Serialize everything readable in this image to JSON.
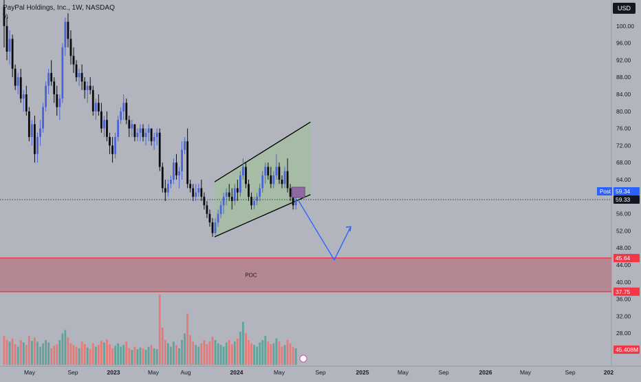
{
  "header": {
    "symbol_title": "PayPal Holdings, Inc., 1W, NASDAQ",
    "indicator_label": "Vi",
    "currency": "USD"
  },
  "chart_data": {
    "type": "candlestick",
    "symbol": "PayPal Holdings, Inc.",
    "interval": "1W",
    "exchange": "NASDAQ",
    "y_ticks": [
      100,
      96,
      92,
      88,
      84,
      80,
      76,
      72,
      68,
      64,
      56,
      52,
      48,
      44,
      40,
      36,
      32,
      28
    ],
    "x_ticks": [
      "May",
      "Sep",
      "2023",
      "May",
      "Aug",
      "2024",
      "May",
      "Sep",
      "2025",
      "May",
      "Sep",
      "2026",
      "May",
      "Sep",
      "202"
    ],
    "price_labels": {
      "post": {
        "label": "Post",
        "value": "59.34"
      },
      "last": "59.33",
      "poc_top": "45.64",
      "poc_bottom": "37.75",
      "volume": "45.408M"
    },
    "zones": [
      {
        "label": "POC",
        "top": 45.64,
        "bottom": 37.75
      }
    ],
    "channel": {
      "lower": [
        [
          0,
          50.6
        ],
        [
          22,
          60.5
        ]
      ],
      "upper": [
        [
          0,
          63.5
        ],
        [
          22,
          77.5
        ]
      ]
    },
    "projection": [
      [
        59.3
      ],
      [
        45.2
      ],
      [
        53
      ]
    ],
    "candles": [
      [
        104.5,
        108,
        95,
        100
      ],
      [
        100,
        102,
        92,
        94
      ],
      [
        94,
        99,
        91,
        97
      ],
      [
        97,
        98,
        88,
        90
      ],
      [
        90,
        91,
        85,
        86
      ],
      [
        86,
        89,
        84,
        88
      ],
      [
        88,
        90,
        82,
        83
      ],
      [
        83,
        85,
        80,
        84
      ],
      [
        84,
        86,
        79,
        80
      ],
      [
        80,
        81,
        73,
        74
      ],
      [
        74,
        78,
        72,
        77
      ],
      [
        77,
        79,
        68,
        70
      ],
      [
        70,
        75,
        68,
        74
      ],
      [
        74,
        78,
        72,
        76
      ],
      [
        76,
        82,
        75,
        81
      ],
      [
        81,
        87,
        80,
        86
      ],
      [
        86,
        90,
        84,
        89
      ],
      [
        89,
        92,
        86,
        87
      ],
      [
        87,
        88,
        82,
        84
      ],
      [
        84,
        86,
        79,
        81
      ],
      [
        81,
        84,
        78,
        83
      ],
      [
        83,
        96,
        82,
        95
      ],
      [
        95,
        102,
        93,
        101
      ],
      [
        101,
        103,
        95,
        97
      ],
      [
        97,
        99,
        91,
        93
      ],
      [
        93,
        95,
        89,
        91
      ],
      [
        91,
        92,
        87,
        88
      ],
      [
        88,
        90,
        86,
        89
      ],
      [
        89,
        91,
        85,
        87
      ],
      [
        87,
        88,
        83,
        85
      ],
      [
        85,
        87,
        82,
        86
      ],
      [
        86,
        88,
        84,
        85
      ],
      [
        85,
        86,
        79,
        80
      ],
      [
        80,
        83,
        78,
        82
      ],
      [
        82,
        84,
        79,
        80
      ],
      [
        80,
        82,
        75,
        76
      ],
      [
        76,
        79,
        74,
        78
      ],
      [
        78,
        80,
        73,
        74
      ],
      [
        74,
        75,
        70,
        72
      ],
      [
        72,
        74,
        68,
        70
      ],
      [
        70,
        75,
        69,
        74
      ],
      [
        74,
        79,
        73,
        78
      ],
      [
        78,
        81,
        77,
        80
      ],
      [
        80,
        84,
        78,
        82
      ],
      [
        82,
        83,
        77,
        78
      ],
      [
        78,
        79,
        74,
        76
      ],
      [
        76,
        78,
        74,
        77
      ],
      [
        77,
        77,
        73,
        74
      ],
      [
        74,
        76,
        73,
        75
      ],
      [
        75,
        77,
        73,
        76
      ],
      [
        76,
        77,
        73,
        74
      ],
      [
        74,
        76,
        72,
        75
      ],
      [
        75,
        77,
        73,
        76
      ],
      [
        76,
        76,
        72,
        73
      ],
      [
        73,
        75,
        71,
        74
      ],
      [
        74,
        76,
        72,
        75
      ],
      [
        75,
        76,
        66,
        67
      ],
      [
        67,
        68,
        61,
        62
      ],
      [
        62,
        64,
        59,
        61
      ],
      [
        61,
        64,
        60,
        63
      ],
      [
        63,
        65,
        62,
        64
      ],
      [
        64,
        69,
        63,
        68
      ],
      [
        68,
        70,
        64,
        65
      ],
      [
        65,
        67,
        62,
        66
      ],
      [
        66,
        73,
        64,
        71
      ],
      [
        71,
        74,
        70,
        73
      ],
      [
        73,
        76,
        62,
        63
      ],
      [
        63,
        64,
        61,
        62
      ],
      [
        62,
        63,
        59,
        60
      ],
      [
        60,
        63,
        59,
        61
      ],
      [
        61,
        63,
        60,
        62
      ],
      [
        62,
        64,
        59,
        60
      ],
      [
        60,
        61,
        57,
        58
      ],
      [
        58,
        59,
        55,
        56
      ],
      [
        56,
        57,
        53,
        54
      ],
      [
        54,
        55,
        50.6,
        51.5
      ],
      [
        51.5,
        55,
        51,
        54
      ],
      [
        54,
        57,
        53,
        56
      ],
      [
        56,
        59,
        55,
        58
      ],
      [
        58,
        61,
        56,
        60
      ],
      [
        60,
        62,
        58,
        61
      ],
      [
        61,
        63,
        59,
        60
      ],
      [
        60,
        62,
        57,
        59
      ],
      [
        59,
        63,
        58,
        62
      ],
      [
        62,
        64,
        59,
        61
      ],
      [
        61,
        66,
        60,
        65
      ],
      [
        65,
        69,
        64,
        67
      ],
      [
        67,
        68,
        62,
        63
      ],
      [
        63,
        64,
        59,
        60
      ],
      [
        60,
        61,
        57,
        58
      ],
      [
        58,
        60,
        57,
        59
      ],
      [
        59,
        61,
        58,
        60
      ],
      [
        60,
        63,
        59,
        62
      ],
      [
        62,
        66,
        61,
        65
      ],
      [
        65,
        68,
        63,
        67
      ],
      [
        67,
        68,
        64,
        65
      ],
      [
        65,
        67,
        62,
        63
      ],
      [
        63,
        66,
        62,
        65
      ],
      [
        65,
        70,
        64,
        67
      ],
      [
        67,
        68,
        63,
        64
      ],
      [
        64,
        65,
        62,
        63
      ],
      [
        63,
        67,
        62,
        66
      ],
      [
        66,
        69,
        61,
        62
      ],
      [
        62,
        63,
        59,
        60
      ],
      [
        60,
        61,
        57,
        58
      ],
      [
        58,
        60,
        57,
        59.3
      ]
    ],
    "volume_ratios": [
      0.35,
      0.3,
      0.28,
      0.32,
      0.25,
      0.22,
      0.3,
      0.27,
      0.24,
      0.35,
      0.29,
      0.33,
      0.28,
      0.22,
      0.26,
      0.3,
      0.27,
      0.2,
      0.23,
      0.25,
      0.3,
      0.38,
      0.42,
      0.33,
      0.26,
      0.24,
      0.22,
      0.2,
      0.28,
      0.25,
      0.21,
      0.19,
      0.26,
      0.22,
      0.24,
      0.29,
      0.27,
      0.31,
      0.25,
      0.2,
      0.23,
      0.26,
      0.22,
      0.24,
      0.28,
      0.2,
      0.18,
      0.22,
      0.19,
      0.21,
      0.2,
      0.18,
      0.22,
      0.24,
      0.2,
      0.19,
      0.85,
      0.45,
      0.3,
      0.26,
      0.22,
      0.28,
      0.24,
      0.2,
      0.3,
      0.38,
      0.62,
      0.36,
      0.28,
      0.24,
      0.22,
      0.26,
      0.3,
      0.25,
      0.28,
      0.34,
      0.3,
      0.26,
      0.24,
      0.22,
      0.27,
      0.3,
      0.25,
      0.28,
      0.32,
      0.4,
      0.52,
      0.38,
      0.3,
      0.26,
      0.24,
      0.22,
      0.27,
      0.3,
      0.35,
      0.28,
      0.25,
      0.26,
      0.32,
      0.28,
      0.22,
      0.24,
      0.3,
      0.26,
      0.22,
      0.2
    ],
    "colors": {
      "up": "#4a63d6",
      "down": "#0b0b0f",
      "volume_up": "#5fa39a",
      "volume_down": "#e57a78",
      "poc_fill": "#b5828d",
      "poc_line": "#f23645",
      "channel_fill": "#a4bda3",
      "projection": "#2962ff",
      "last_price": "#131722",
      "post_label": "#2962ff"
    }
  }
}
